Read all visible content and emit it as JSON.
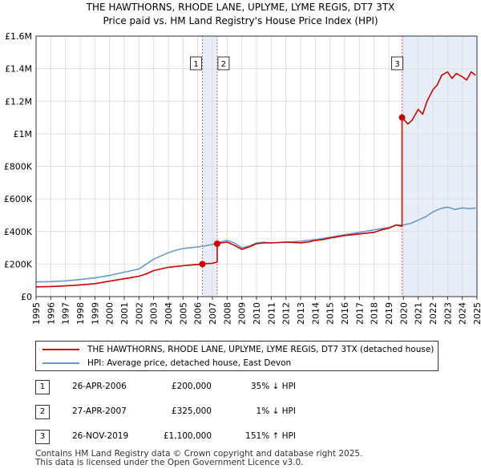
{
  "title_line1": "THE HAWTHORNS, RHODE LANE, UPLYME, LYME REGIS, DT7 3TX",
  "title_line2": "Price paid vs. HM Land Registry's House Price Index (HPI)",
  "chart_data": {
    "type": "line",
    "xlim": [
      1995,
      2025
    ],
    "ylim": [
      0,
      1600000
    ],
    "y_ticks": [
      {
        "value": 0,
        "label": "£0"
      },
      {
        "value": 200000,
        "label": "£200K"
      },
      {
        "value": 400000,
        "label": "£400K"
      },
      {
        "value": 600000,
        "label": "£600K"
      },
      {
        "value": 800000,
        "label": "£800K"
      },
      {
        "value": 1000000,
        "label": "£1M"
      },
      {
        "value": 1200000,
        "label": "£1.2M"
      },
      {
        "value": 1400000,
        "label": "£1.4M"
      },
      {
        "value": 1600000,
        "label": "£1.6M"
      }
    ],
    "x_ticks": [
      "1995",
      "1996",
      "1997",
      "1998",
      "1999",
      "2000",
      "2001",
      "2002",
      "2003",
      "2004",
      "2005",
      "2006",
      "2007",
      "2008",
      "2009",
      "2010",
      "2011",
      "2012",
      "2013",
      "2014",
      "2015",
      "2016",
      "2017",
      "2018",
      "2019",
      "2020",
      "2021",
      "2022",
      "2023",
      "2024",
      "2025"
    ],
    "series": [
      {
        "name": "THE HAWTHORNS, RHODE LANE, UPLYME, LYME REGIS, DT7 3TX (detached house)",
        "color": "#cc0000",
        "x": [
          1995.0,
          1996.0,
          1997.0,
          1998.0,
          1999.0,
          2000.0,
          2001.0,
          2002.0,
          2002.5,
          2003.0,
          2003.5,
          2004.0,
          2005.0,
          2006.0,
          2006.32,
          2006.33,
          2007.0,
          2007.32,
          2007.33,
          2007.6,
          2008.0,
          2008.5,
          2009.0,
          2009.5,
          2010.0,
          2010.5,
          2011.0,
          2012.0,
          2013.0,
          2013.5,
          2014.0,
          2014.5,
          2015.0,
          2016.0,
          2017.0,
          2018.0,
          2018.5,
          2019.0,
          2019.5,
          2019.9,
          2019.901,
          2020.1,
          2020.3,
          2020.6,
          2021.0,
          2021.3,
          2021.6,
          2022.0,
          2022.3,
          2022.6,
          2023.0,
          2023.3,
          2023.6,
          2024.0,
          2024.3,
          2024.6,
          2024.9
        ],
        "values": [
          60000,
          62000,
          66000,
          72000,
          80000,
          95000,
          110000,
          125000,
          140000,
          160000,
          170000,
          180000,
          190000,
          198000,
          200000,
          202000,
          205000,
          212000,
          325000,
          330000,
          335000,
          315000,
          290000,
          305000,
          325000,
          330000,
          330000,
          335000,
          330000,
          335000,
          345000,
          350000,
          360000,
          375000,
          385000,
          395000,
          410000,
          420000,
          440000,
          432000,
          1100000,
          1080000,
          1060000,
          1085000,
          1150000,
          1120000,
          1200000,
          1270000,
          1300000,
          1360000,
          1380000,
          1340000,
          1370000,
          1350000,
          1330000,
          1380000,
          1360000
        ]
      },
      {
        "name": "HPI: Average price, detached house, East Devon",
        "color": "#6699cc",
        "x": [
          1995.0,
          1996.0,
          1997.0,
          1998.0,
          1999.0,
          2000.0,
          2001.0,
          2002.0,
          2002.5,
          2003.0,
          2003.5,
          2004.0,
          2004.5,
          2005.0,
          2006.0,
          2007.0,
          2007.5,
          2008.0,
          2008.5,
          2009.0,
          2009.5,
          2010.0,
          2010.5,
          2011.0,
          2012.0,
          2013.0,
          2014.0,
          2015.0,
          2016.0,
          2017.0,
          2018.0,
          2019.0,
          2019.5,
          2020.0,
          2020.5,
          2021.0,
          2021.5,
          2022.0,
          2022.5,
          2023.0,
          2023.5,
          2024.0,
          2024.5,
          2024.9
        ],
        "values": [
          90000,
          92000,
          97000,
          105000,
          115000,
          130000,
          150000,
          170000,
          200000,
          230000,
          250000,
          270000,
          285000,
          295000,
          305000,
          320000,
          335000,
          345000,
          330000,
          300000,
          310000,
          330000,
          335000,
          330000,
          335000,
          340000,
          350000,
          365000,
          380000,
          395000,
          410000,
          425000,
          440000,
          440000,
          450000,
          470000,
          490000,
          520000,
          540000,
          550000,
          535000,
          545000,
          540000,
          545000
        ]
      }
    ],
    "shaded_ranges": [
      [
        2006.32,
        2007.32
      ],
      [
        2019.9,
        2025.0
      ]
    ],
    "sale_points": [
      {
        "id": "1",
        "x": 2006.32,
        "value": 200000
      },
      {
        "id": "2",
        "x": 2007.32,
        "value": 325000
      },
      {
        "id": "3",
        "x": 2019.9,
        "value": 1100000
      }
    ]
  },
  "legend": {
    "property_label": "THE HAWTHORNS, RHODE LANE, UPLYME, LYME REGIS, DT7 3TX (detached house)",
    "hpi_label": "HPI: Average price, detached house, East Devon"
  },
  "sales": [
    {
      "id": "1",
      "date": "26-APR-2006",
      "price": "£200,000",
      "hpi": "35% ↓ HPI"
    },
    {
      "id": "2",
      "date": "27-APR-2007",
      "price": "£325,000",
      "hpi": "1% ↓ HPI"
    },
    {
      "id": "3",
      "date": "26-NOV-2019",
      "price": "£1,100,000",
      "hpi": "151% ↑ HPI"
    }
  ],
  "footer_line1": "Contains HM Land Registry data © Crown copyright and database right 2025.",
  "footer_line2": "This data is licensed under the Open Government Licence v3.0."
}
